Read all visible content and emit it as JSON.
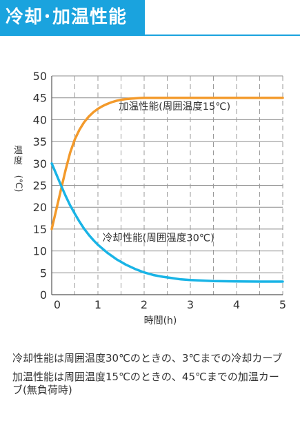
{
  "header": {
    "title": "冷却･加温性能"
  },
  "notes": [
    "冷却性能は周囲温度30℃のときの、3℃までの冷却カーブ",
    "加温性能は周囲温度15℃のときの、45℃までの加温カーブ(無負荷時)"
  ],
  "chart_data": {
    "type": "line",
    "title": "",
    "xlabel": "時間(h)",
    "ylabel": "温度(℃)",
    "xlim": [
      0,
      5
    ],
    "ylim": [
      0,
      50
    ],
    "xticks": [
      0,
      1,
      2,
      3,
      4,
      5
    ],
    "xtick_labels": [
      "0",
      "1",
      "2",
      "3",
      "4",
      "5"
    ],
    "yticks": [
      0,
      5,
      10,
      15,
      20,
      25,
      30,
      35,
      40,
      45,
      50
    ],
    "ytick_labels": [
      "0",
      "5",
      "10",
      "15",
      "20",
      "25",
      "30",
      "35",
      "40",
      "45",
      "50"
    ],
    "grid": {
      "horizontal": true,
      "vertical_dashed_every": 0.5
    },
    "series": [
      {
        "name": "加温性能(周囲温度15℃)",
        "color": "#f39a2b",
        "x": [
          0,
          0.1,
          0.2,
          0.3,
          0.4,
          0.5,
          0.6,
          0.7,
          0.8,
          0.9,
          1.0,
          1.1,
          1.2,
          1.3,
          1.4,
          1.5,
          1.6,
          1.7,
          1.8,
          1.9,
          2.0,
          2.5,
          3.0,
          3.5,
          4.0,
          4.5,
          5.0
        ],
        "y": [
          15,
          19.5,
          24,
          28.5,
          32.5,
          35.5,
          37.7,
          39.4,
          40.7,
          41.7,
          42.5,
          43.1,
          43.6,
          44.0,
          44.3,
          44.55,
          44.7,
          44.8,
          44.88,
          44.95,
          45,
          45,
          45,
          45,
          45,
          45,
          45
        ]
      },
      {
        "name": "冷却性能(周囲温度30℃)",
        "color": "#19b4e6",
        "x": [
          0,
          0.1,
          0.2,
          0.3,
          0.4,
          0.5,
          0.6,
          0.7,
          0.8,
          0.9,
          1.0,
          1.2,
          1.4,
          1.6,
          1.8,
          2.0,
          2.2,
          2.4,
          2.6,
          2.8,
          3.0,
          3.5,
          4.0,
          4.5,
          5.0
        ],
        "y": [
          30,
          27.5,
          25.0,
          22.6,
          20.4,
          18.5,
          16.7,
          15.1,
          13.7,
          12.5,
          11.4,
          9.6,
          8.1,
          6.9,
          5.9,
          5.1,
          4.5,
          4.1,
          3.8,
          3.5,
          3.35,
          3.1,
          3.05,
          3.0,
          3.0
        ]
      }
    ],
    "annotations": [
      {
        "text": "加温性能(周囲温度15℃)",
        "series": 0,
        "x": 1.45,
        "y": 42.3
      },
      {
        "text": "冷却性能(周囲温度30℃)",
        "series": 1,
        "x": 1.1,
        "y": 12.2
      }
    ]
  }
}
